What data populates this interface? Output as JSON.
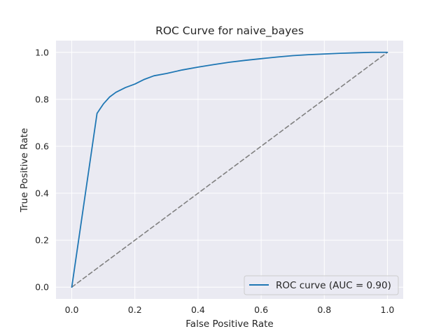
{
  "chart_data": {
    "type": "line",
    "title": "ROC Curve for naive_bayes",
    "xlabel": "False Positive Rate",
    "ylabel": "True Positive Rate",
    "xlim": [
      -0.05,
      1.05
    ],
    "ylim": [
      -0.05,
      1.05
    ],
    "xticks": [
      "0.0",
      "0.2",
      "0.4",
      "0.6",
      "0.8",
      "1.0"
    ],
    "yticks": [
      "0.0",
      "0.2",
      "0.4",
      "0.6",
      "0.8",
      "1.0"
    ],
    "grid": true,
    "legend_position": "lower-right",
    "series": [
      {
        "name": "ROC curve (AUC = 0.90)",
        "color": "#1f77b4",
        "style": "solid",
        "x": [
          0.0,
          0.08,
          0.09,
          0.1,
          0.12,
          0.14,
          0.17,
          0.2,
          0.23,
          0.26,
          0.3,
          0.35,
          0.4,
          0.45,
          0.5,
          0.55,
          0.6,
          0.65,
          0.7,
          0.75,
          0.8,
          0.85,
          0.9,
          0.95,
          1.0
        ],
        "y": [
          0.0,
          0.74,
          0.76,
          0.78,
          0.81,
          0.83,
          0.85,
          0.865,
          0.885,
          0.9,
          0.91,
          0.925,
          0.937,
          0.948,
          0.958,
          0.966,
          0.973,
          0.98,
          0.986,
          0.99,
          0.993,
          0.996,
          0.998,
          1.0,
          1.0
        ]
      },
      {
        "name": "",
        "color": "#808080",
        "style": "dashed",
        "x": [
          0.0,
          1.0
        ],
        "y": [
          0.0,
          1.0
        ]
      }
    ],
    "colors": {
      "plot_background": "#eaeaf2",
      "grid": "#ffffff"
    }
  }
}
